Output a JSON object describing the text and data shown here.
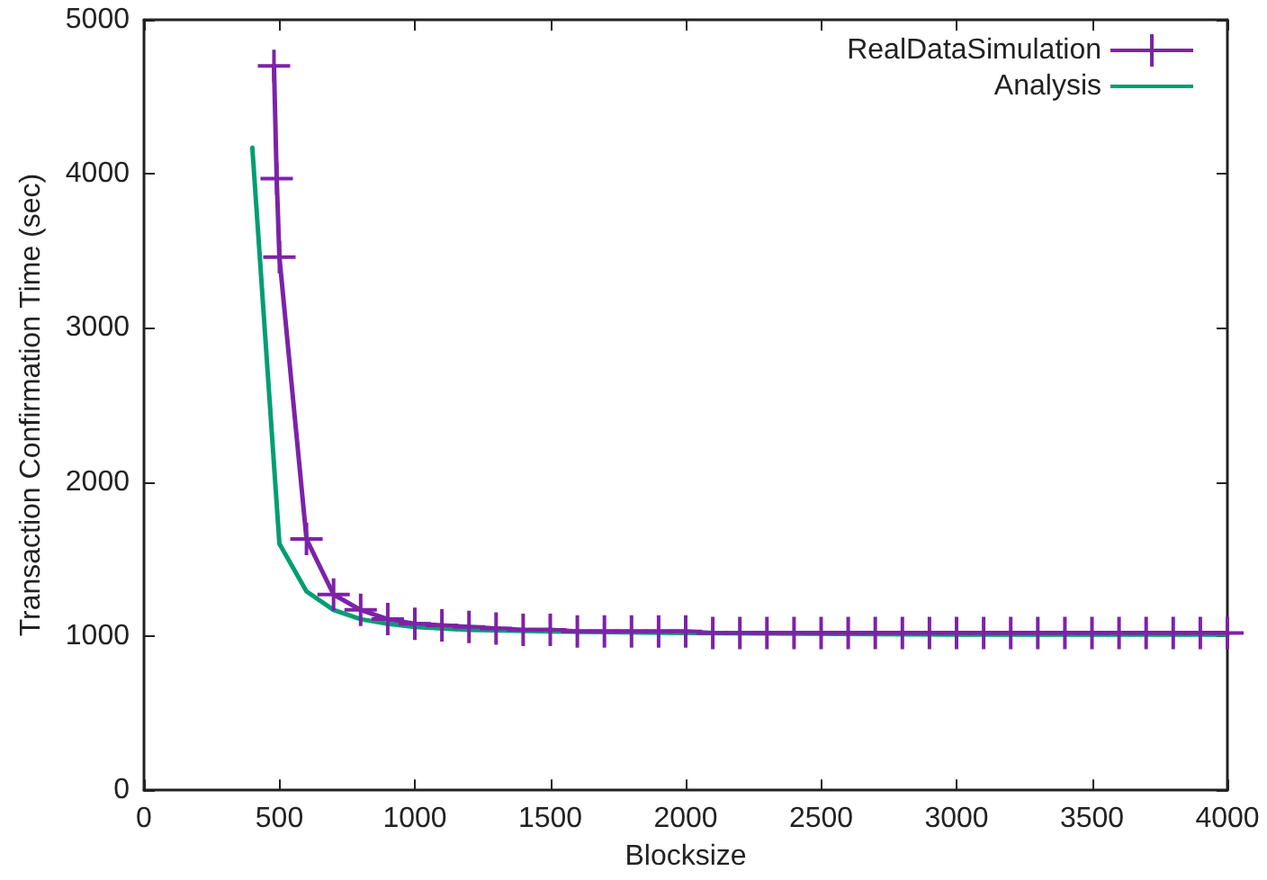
{
  "chart_data": {
    "type": "line",
    "xlabel": "Blocksize",
    "ylabel": "Transaction Confirmation Time (sec)",
    "xlim": [
      0,
      4000
    ],
    "xticks": [
      0,
      500,
      1000,
      1500,
      2000,
      2500,
      3000,
      3500,
      4000
    ],
    "ylim": [
      0,
      5000
    ],
    "yticks": [
      0,
      1000,
      2000,
      3000,
      4000,
      5000
    ],
    "grid": false,
    "legend": "top right",
    "series": [
      {
        "name": "RealDataSimulation",
        "color": "#7d22a8",
        "marker": "cross",
        "x": [
          480,
          490,
          500,
          600,
          700,
          800,
          900,
          1000,
          1100,
          1200,
          1300,
          1400,
          1500,
          1600,
          1700,
          1800,
          1900,
          2000,
          2100,
          2200,
          2300,
          2400,
          2500,
          2600,
          2700,
          2800,
          2900,
          3000,
          3100,
          3200,
          3300,
          3400,
          3500,
          3600,
          3700,
          3800,
          3900,
          4000
        ],
        "values": [
          4700,
          3970,
          3460,
          1630,
          1270,
          1170,
          1110,
          1080,
          1070,
          1060,
          1050,
          1040,
          1040,
          1030,
          1030,
          1030,
          1030,
          1030,
          1020,
          1020,
          1020,
          1020,
          1020,
          1020,
          1020,
          1020,
          1020,
          1020,
          1020,
          1020,
          1020,
          1020,
          1020,
          1020,
          1020,
          1020,
          1020,
          1020
        ]
      },
      {
        "name": "Analysis",
        "color": "#009e73",
        "marker": "none",
        "x": [
          400,
          500,
          600,
          700,
          800,
          900,
          1000,
          1200,
          1500,
          2000,
          3000,
          4000
        ],
        "values": [
          4170,
          1600,
          1290,
          1170,
          1110,
          1080,
          1060,
          1040,
          1030,
          1020,
          1010,
          1010
        ]
      }
    ]
  }
}
